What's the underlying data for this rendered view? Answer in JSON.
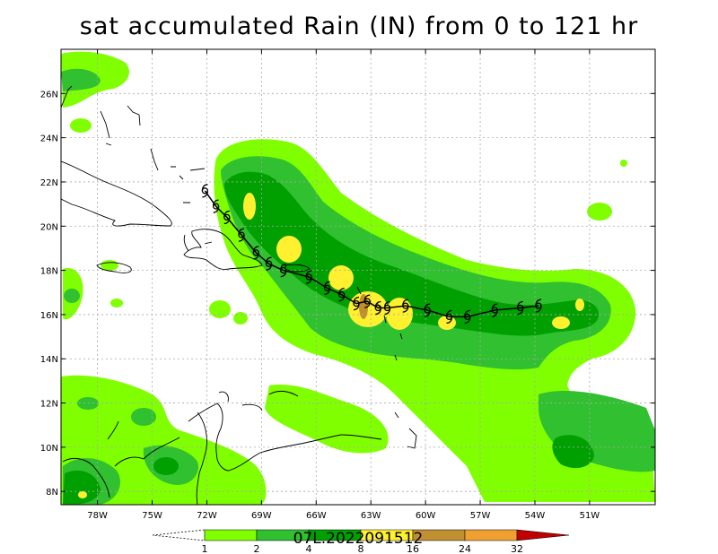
{
  "title": "sat accumulated Rain (IN) from 0 to 121 hr",
  "storm_label": "07L.2022091512",
  "map_extent": {
    "lon_min": -80,
    "lon_max": -47.4,
    "lat_min": 7.4,
    "lat_max": 28
  },
  "lat_ticks": [
    {
      "value": 8,
      "label": "8N"
    },
    {
      "value": 10,
      "label": "10N"
    },
    {
      "value": 12,
      "label": "12N"
    },
    {
      "value": 14,
      "label": "14N"
    },
    {
      "value": 16,
      "label": "16N"
    },
    {
      "value": 18,
      "label": "18N"
    },
    {
      "value": 20,
      "label": "20N"
    },
    {
      "value": 22,
      "label": "22N"
    },
    {
      "value": 24,
      "label": "24N"
    },
    {
      "value": 26,
      "label": "26N"
    }
  ],
  "lon_ticks": [
    {
      "value": -78,
      "label": "78W"
    },
    {
      "value": -75,
      "label": "75W"
    },
    {
      "value": -72,
      "label": "72W"
    },
    {
      "value": -69,
      "label": "69W"
    },
    {
      "value": -66,
      "label": "66W"
    },
    {
      "value": -63,
      "label": "63W"
    },
    {
      "value": -60,
      "label": "60W"
    },
    {
      "value": -57,
      "label": "57W"
    },
    {
      "value": -54,
      "label": "54W"
    },
    {
      "value": -51,
      "label": "51W"
    }
  ],
  "colorbar": {
    "levels": [
      "1",
      "2",
      "4",
      "8",
      "16",
      "24",
      "32"
    ],
    "colors": [
      "#ffffff",
      "#80ff00",
      "#30c030",
      "#00a000",
      "#fff030",
      "#c09030",
      "#f0a030",
      "#c00000"
    ]
  },
  "track": [
    {
      "lon": -72.1,
      "lat": 21.6
    },
    {
      "lon": -71.5,
      "lat": 20.9
    },
    {
      "lon": -70.9,
      "lat": 20.4
    },
    {
      "lon": -70.1,
      "lat": 19.6
    },
    {
      "lon": -69.3,
      "lat": 18.8
    },
    {
      "lon": -68.6,
      "lat": 18.3
    },
    {
      "lon": -67.8,
      "lat": 18.0
    },
    {
      "lon": -66.4,
      "lat": 17.7
    },
    {
      "lon": -65.4,
      "lat": 17.2
    },
    {
      "lon": -64.6,
      "lat": 16.9
    },
    {
      "lon": -63.8,
      "lat": 16.5
    },
    {
      "lon": -63.2,
      "lat": 16.6
    },
    {
      "lon": -62.6,
      "lat": 16.3
    },
    {
      "lon": -62.1,
      "lat": 16.3
    },
    {
      "lon": -61.1,
      "lat": 16.4
    },
    {
      "lon": -59.9,
      "lat": 16.2
    },
    {
      "lon": -58.7,
      "lat": 15.9
    },
    {
      "lon": -57.7,
      "lat": 15.9
    },
    {
      "lon": -56.2,
      "lat": 16.2
    },
    {
      "lon": -54.8,
      "lat": 16.3
    },
    {
      "lon": -53.8,
      "lat": 16.4
    }
  ]
}
